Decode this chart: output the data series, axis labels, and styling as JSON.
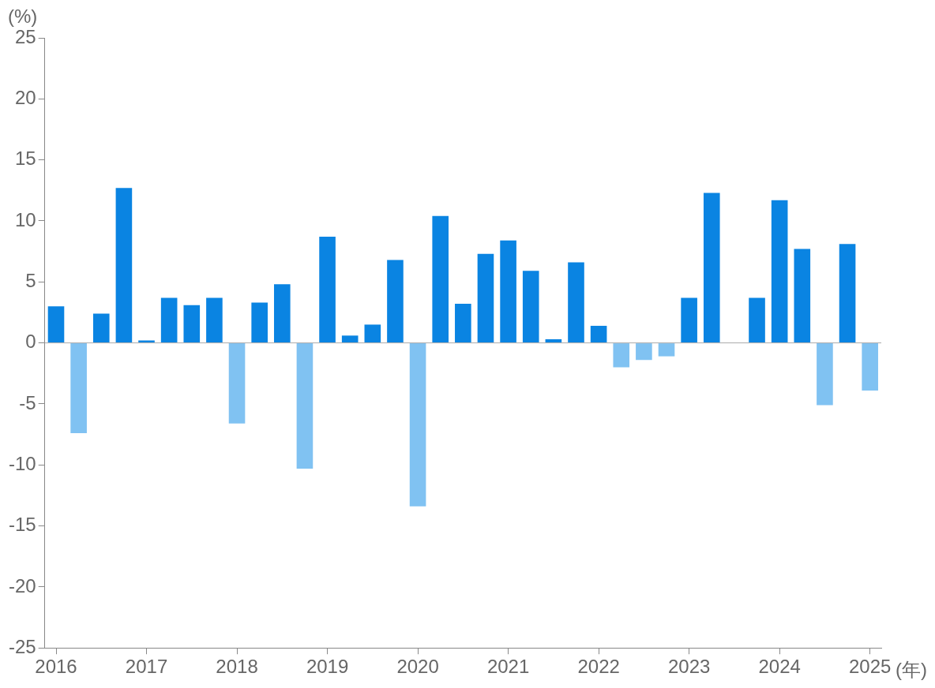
{
  "chart_data": {
    "type": "bar",
    "ylabel": "(%)",
    "xlabel": "(年)",
    "categories": [
      "2016",
      null,
      null,
      null,
      "2017",
      null,
      null,
      null,
      "2018",
      null,
      null,
      null,
      "2019",
      null,
      null,
      null,
      "2020",
      null,
      null,
      null,
      "2021",
      null,
      null,
      null,
      "2022",
      null,
      null,
      null,
      "2023",
      null,
      null,
      null,
      "2024",
      null,
      null,
      null,
      "2025"
    ],
    "values": [
      3.0,
      -7.4,
      2.4,
      12.7,
      0.2,
      3.7,
      3.1,
      3.7,
      -6.6,
      3.3,
      4.8,
      -10.3,
      8.7,
      0.6,
      1.5,
      6.8,
      -13.4,
      10.4,
      3.2,
      7.3,
      8.4,
      5.9,
      0.3,
      6.6,
      1.4,
      -2.0,
      -1.4,
      -1.1,
      3.7,
      12.3,
      0,
      3.7,
      11.7,
      7.7,
      -5.1,
      8.1,
      -3.9
    ],
    "colors": [
      "#0a84e2",
      "#80c2f2",
      "#0a84e2",
      "#0a84e2",
      "#0a84e2",
      "#0a84e2",
      "#0a84e2",
      "#0a84e2",
      "#80c2f2",
      "#0a84e2",
      "#0a84e2",
      "#80c2f2",
      "#0a84e2",
      "#0a84e2",
      "#0a84e2",
      "#0a84e2",
      "#80c2f2",
      "#0a84e2",
      "#0a84e2",
      "#0a84e2",
      "#0a84e2",
      "#0a84e2",
      "#0a84e2",
      "#0a84e2",
      "#0a84e2",
      "#80c2f2",
      "#80c2f2",
      "#80c2f2",
      "#0a84e2",
      "#0a84e2",
      "#0a84e2",
      "#0a84e2",
      "#0a84e2",
      "#0a84e2",
      "#80c2f2",
      "#0a84e2",
      "#80c2f2"
    ],
    "ylim": [
      -25,
      25
    ],
    "yticks": [
      -25,
      -20,
      -15,
      -10,
      -5,
      0,
      5,
      10,
      15,
      20,
      25
    ],
    "ref_lines": [
      {
        "axis": "y",
        "value": 0,
        "color": "#aaaaaa"
      }
    ],
    "grid": false,
    "legend": false
  }
}
